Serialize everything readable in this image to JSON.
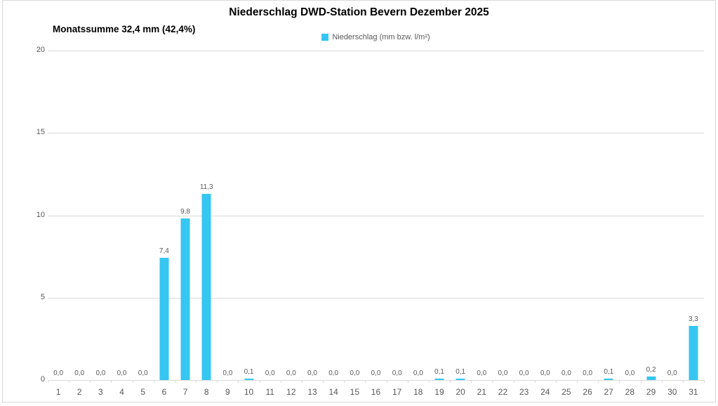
{
  "title": "Niederschlag DWD-Station Bevern Dezember 2025",
  "subtitle": "Monatssumme 32,4 mm (42,4%)",
  "legend": {
    "label": "Niederschlag (mm bzw. l/m²)"
  },
  "colors": {
    "bar": "#35C6F1",
    "grid": "#D9D9D9",
    "axis_text": "#595959",
    "title_text": "#000000"
  },
  "chart_data": {
    "type": "bar",
    "title": "Niederschlag DWD-Station Bevern Dezember 2025",
    "subtitle": "Monatssumme 32,4 mm (42,4%)",
    "legend_entries": [
      "Niederschlag (mm bzw. l/m²)"
    ],
    "legend_position": "top-center",
    "xlabel": "",
    "ylabel": "",
    "categories": [
      1,
      2,
      3,
      4,
      5,
      6,
      7,
      8,
      9,
      10,
      11,
      12,
      13,
      14,
      15,
      16,
      17,
      18,
      19,
      20,
      21,
      22,
      23,
      24,
      25,
      26,
      27,
      28,
      29,
      30,
      31
    ],
    "values": [
      0.0,
      0.0,
      0.0,
      0.0,
      0.0,
      7.4,
      9.8,
      11.3,
      0.0,
      0.1,
      0.0,
      0.0,
      0.0,
      0.0,
      0.0,
      0.0,
      0.0,
      0.0,
      0.1,
      0.1,
      0.0,
      0.0,
      0.0,
      0.0,
      0.0,
      0.0,
      0.1,
      0.0,
      0.2,
      0.0,
      3.3
    ],
    "value_labels": [
      "0,0",
      "0,0",
      "0,0",
      "0,0",
      "0,0",
      "7,4",
      "9,8",
      "11,3",
      "0,0",
      "0,1",
      "0,0",
      "0,0",
      "0,0",
      "0,0",
      "0,0",
      "0,0",
      "0,0",
      "0,0",
      "0,1",
      "0,1",
      "0,0",
      "0,0",
      "0,0",
      "0,0",
      "0,0",
      "0,0",
      "0,1",
      "0,0",
      "0,2",
      "0,0",
      "3,3"
    ],
    "ylim": [
      0,
      20
    ],
    "yticks": [
      0,
      5,
      10,
      15,
      20
    ],
    "grid": true
  }
}
